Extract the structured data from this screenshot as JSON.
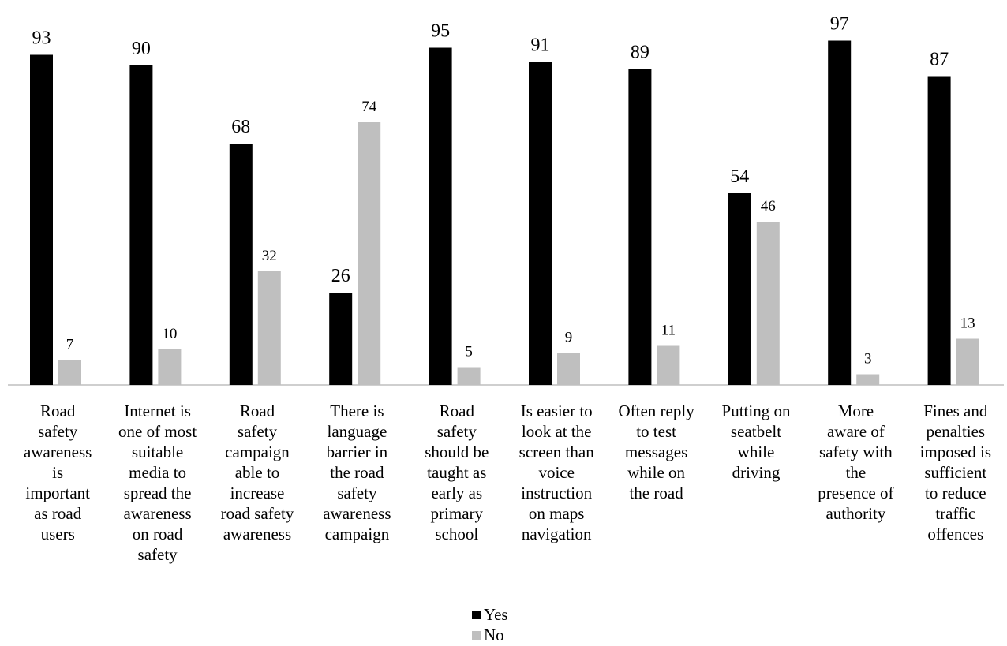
{
  "chart_data": {
    "type": "bar",
    "categories": [
      "Road\nsafety\nawareness\nis\nimportant\nas road\nusers",
      "Internet is\none of most\nsuitable\nmedia to\nspread the\nawareness\non road\nsafety",
      "Road\nsafety\ncampaign\nable to\nincrease\nroad safety\nawareness",
      "There is\nlanguage\nbarrier in\nthe road\nsafety\nawareness\ncampaign",
      "Road\nsafety\nshould be\ntaught as\nearly as\nprimary\nschool",
      "Is easier to\nlook at the\nscreen than\nvoice\ninstruction\non maps\nnavigation",
      "Often reply\nto test\nmessages\nwhile on\nthe road",
      "Putting on\nseatbelt\nwhile\ndriving",
      "More\naware of\nsafety with\nthe\npresence of\nauthority",
      "Fines and\npenalties\nimposed is\nsufficient\nto reduce\ntraffic\noffences"
    ],
    "series": [
      {
        "name": "Yes",
        "color": "#000000",
        "values": [
          93,
          90,
          68,
          26,
          95,
          91,
          89,
          54,
          97,
          87
        ]
      },
      {
        "name": "No",
        "color": "#bfbfbf",
        "values": [
          7,
          10,
          32,
          74,
          5,
          9,
          11,
          46,
          3,
          13
        ]
      }
    ],
    "ylim": [
      0,
      100
    ],
    "grid": false,
    "legend_position": "bottom"
  }
}
